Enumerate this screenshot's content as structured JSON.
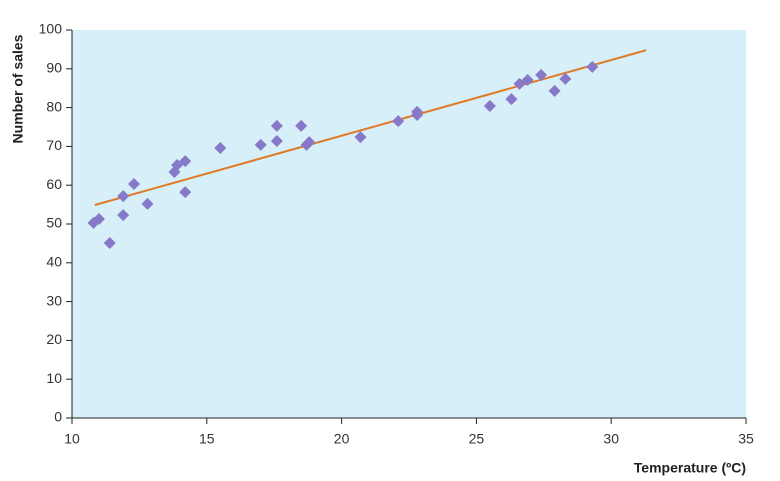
{
  "chart_data": {
    "type": "scatter",
    "x_label": "Temperature (ºC)",
    "y_label": "Number of sales",
    "series": [
      {
        "color": "#8878c8",
        "x": [
          10.8,
          11.0,
          11.4,
          11.9,
          11.9,
          12.3,
          12.8,
          13.8,
          13.9,
          14.2,
          14.2,
          15.5,
          17.0,
          17.6,
          17.6,
          18.5,
          18.7,
          18.8,
          20.7,
          22.1,
          22.8,
          22.8,
          25.5,
          26.3,
          26.6,
          26.9,
          27.4,
          27.9,
          28.3,
          29.3
        ],
        "values": [
          50.3,
          51.3,
          45.1,
          57.2,
          52.3,
          60.3,
          55.2,
          63.4,
          65.2,
          66.2,
          58.2,
          69.6,
          70.4,
          75.3,
          71.4,
          75.3,
          70.4,
          71.1,
          72.4,
          76.5,
          78.9,
          78.1,
          80.4,
          82.2,
          86.1,
          87.1,
          88.4,
          84.3,
          87.4,
          90.5
        ]
      }
    ],
    "trendline": {
      "color": "#e07a28",
      "x": [
        10.85,
        31.3
      ],
      "values": [
        54.9,
        94.8
      ]
    },
    "xlim": [
      10,
      35
    ],
    "xticks": [
      10,
      15,
      20,
      25,
      30,
      35
    ],
    "ylim": [
      0,
      100
    ],
    "yticks": [
      0,
      10,
      20,
      30,
      40,
      50,
      60,
      70,
      80,
      90,
      100
    ]
  }
}
